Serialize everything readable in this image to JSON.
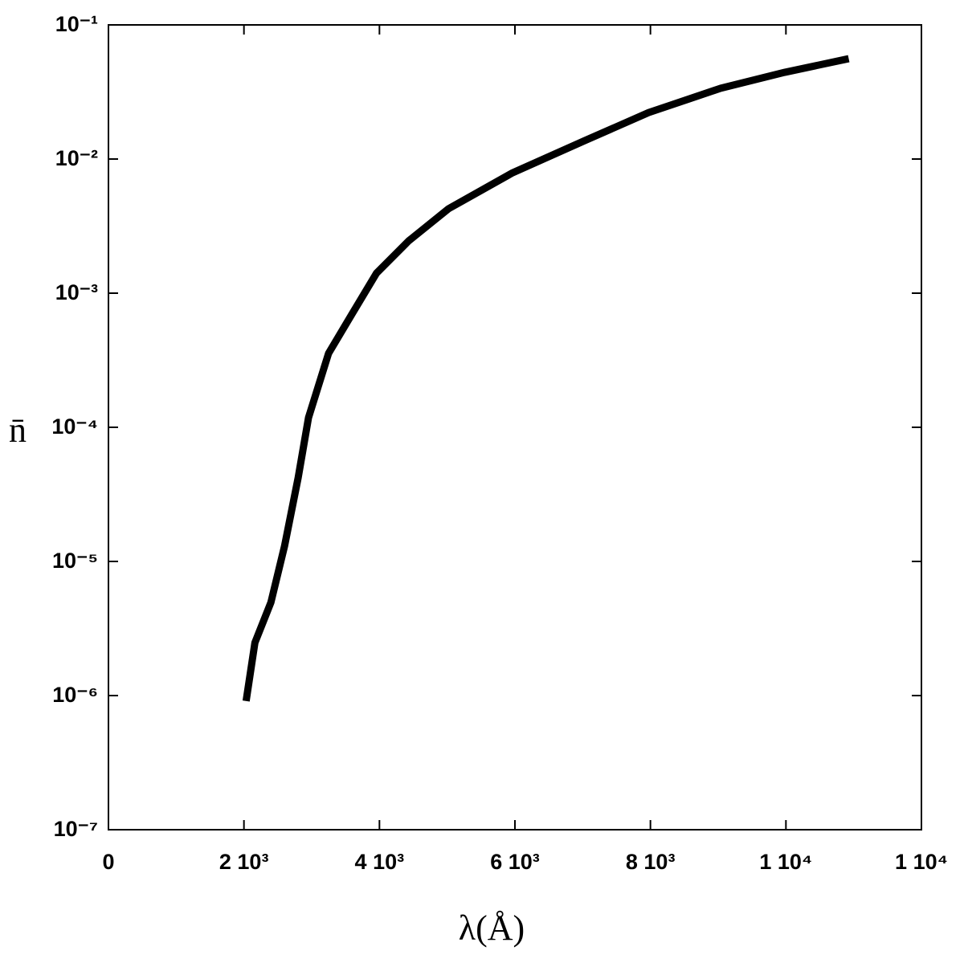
{
  "chart_data": {
    "type": "line",
    "x_label": "λ(Å)",
    "y_label": "n̄",
    "log_y": true,
    "xlim": [
      0,
      12000
    ],
    "xticks": [
      {
        "value": 0,
        "label": "0"
      },
      {
        "value": 2000,
        "label": "2 10³"
      },
      {
        "value": 4000,
        "label": "4 10³"
      },
      {
        "value": 6000,
        "label": "6 10³"
      },
      {
        "value": 8000,
        "label": "8 10³"
      },
      {
        "value": 10000,
        "label": "1 10⁴"
      },
      {
        "value": 12000,
        "label": "1 10⁴"
      }
    ],
    "ylim": [
      1e-07,
      0.1
    ],
    "yticks": [
      {
        "value": 1e-07,
        "label": "10⁻⁷"
      },
      {
        "value": 1e-06,
        "label": "10⁻⁶"
      },
      {
        "value": 1e-05,
        "label": "10⁻⁵"
      },
      {
        "value": 0.0001,
        "label": "10⁻⁴"
      },
      {
        "value": 0.001,
        "label": "10⁻³"
      },
      {
        "value": 0.01,
        "label": "10⁻²"
      },
      {
        "value": 0.1,
        "label": "10⁻¹"
      }
    ],
    "x": [
      2032,
      2162,
      2398,
      2599,
      2800,
      2953,
      3249,
      3603,
      3957,
      4430,
      5020,
      5966,
      7029,
      7974,
      9037,
      9982,
      10927
    ],
    "series": [
      {
        "color": "#000000",
        "values": [
          9.1e-07,
          2.48e-06,
          4.95e-06,
          1.3e-05,
          4.2e-05,
          0.000118,
          0.000356,
          0.00071,
          0.00141,
          0.00245,
          0.00426,
          0.0079,
          0.0137,
          0.0222,
          0.0337,
          0.0443,
          0.056
        ]
      }
    ]
  }
}
